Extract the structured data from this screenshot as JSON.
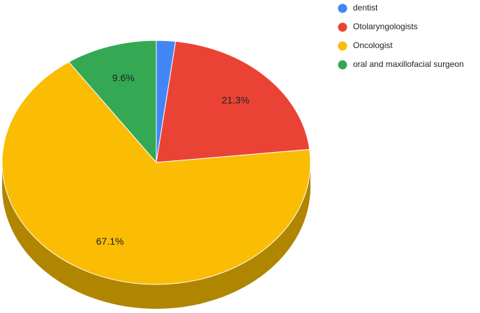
{
  "chart_data": {
    "type": "pie3d",
    "categories": [
      "dentist",
      "Otolaryngologists",
      "Oncologist",
      "oral and maxillofacial surgeon"
    ],
    "values": [
      2.0,
      21.3,
      67.1,
      9.6
    ],
    "value_labels": [
      null,
      "21.3%",
      "67.1%",
      "9.6%"
    ],
    "colors": [
      "#4285f4",
      "#ea4335",
      "#fbbc04",
      "#34a853"
    ],
    "side_colors": [
      "#2a5bb0",
      "#a8302a",
      "#b08600",
      "#237538"
    ]
  }
}
